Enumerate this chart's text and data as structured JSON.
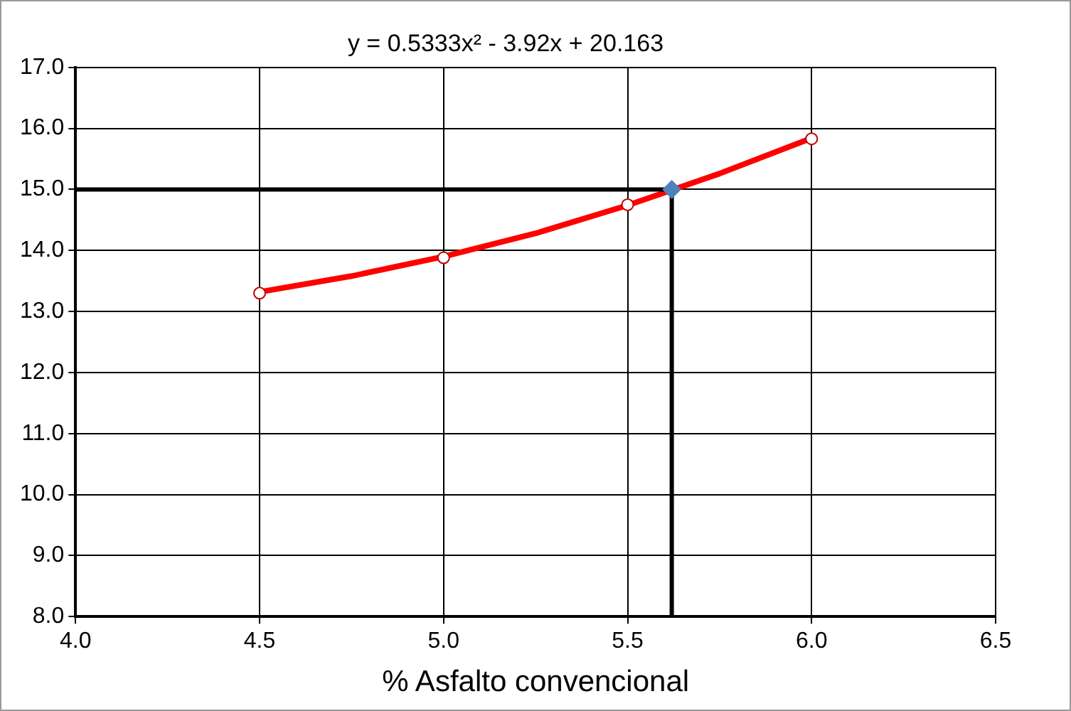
{
  "chart_data": {
    "type": "scatter",
    "title": "y = 0.5333x² - 3.92x + 20.163",
    "xlabel": "% Asfalto convencional",
    "xlim": [
      4.0,
      6.5
    ],
    "xticks": [
      {
        "value": 4,
        "label": "4.0"
      },
      {
        "value": 4.5,
        "label": "4.5"
      },
      {
        "value": 5,
        "label": "5.0"
      },
      {
        "value": 5.5,
        "label": "5.5"
      },
      {
        "value": 6,
        "label": "6.0"
      },
      {
        "value": 6.5,
        "label": "6.5"
      }
    ],
    "ylim": [
      8,
      17
    ],
    "yticks": [
      {
        "value": 8,
        "label": "8.0"
      },
      {
        "value": 9,
        "label": "9.0"
      },
      {
        "value": 10,
        "label": "10.0"
      },
      {
        "value": 11,
        "label": "11.0"
      },
      {
        "value": 12,
        "label": "12.0"
      },
      {
        "value": 13,
        "label": "13.0"
      },
      {
        "value": 14,
        "label": "14.0"
      },
      {
        "value": 15,
        "label": "15.0"
      },
      {
        "value": 16,
        "label": "16.0"
      },
      {
        "value": 17,
        "label": "17.0"
      }
    ],
    "grid": true,
    "legend": false,
    "series": [
      {
        "type": "line",
        "color": "#000000",
        "marker": "none",
        "x": [
          4.0,
          5.62
        ],
        "values": [
          15,
          15
        ]
      },
      {
        "type": "line",
        "color": "#000000",
        "marker": "none",
        "x": [
          5.62,
          5.62
        ],
        "values": [
          8,
          15
        ]
      },
      {
        "type": "line",
        "color": "#ff0000",
        "marker": "none",
        "x": [
          4.5,
          4.75,
          5.0,
          5.25,
          5.5,
          5.75,
          6.0
        ],
        "values": [
          13.32,
          13.58,
          13.9,
          14.28,
          14.74,
          15.26,
          15.84
        ]
      },
      {
        "color": "#c00000",
        "marker": "circle",
        "x": [
          4.5,
          5.0,
          5.5,
          6.0
        ],
        "values": [
          13.3,
          13.88,
          14.75,
          15.83
        ]
      },
      {
        "color": "#4f81bd",
        "marker": "diamond",
        "x": [
          5.62
        ],
        "values": [
          15.0
        ]
      }
    ]
  }
}
